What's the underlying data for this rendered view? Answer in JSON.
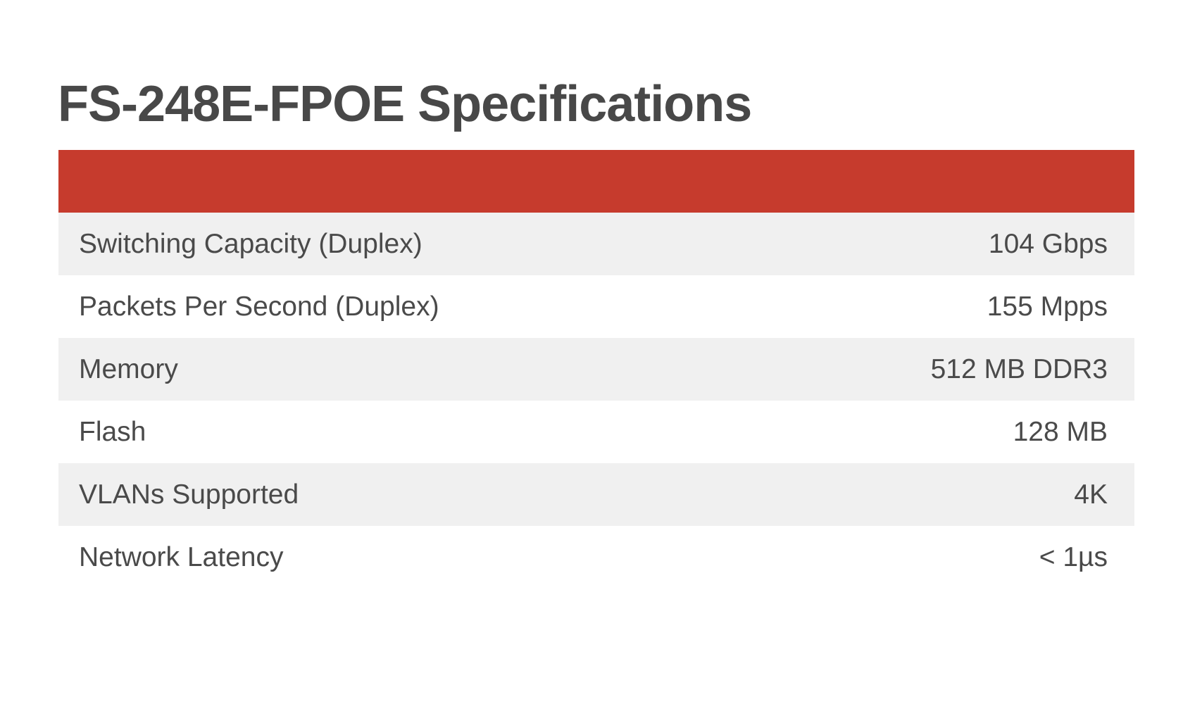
{
  "title": "FS-248E-FPOE Specifications",
  "colors": {
    "header_bar": "#c63b2d",
    "alt_row": "#f0f0f0",
    "text": "#4a4a4a"
  },
  "specs": [
    {
      "label": "Switching Capacity (Duplex)",
      "value": "104 Gbps"
    },
    {
      "label": "Packets Per Second (Duplex)",
      "value": "155 Mpps"
    },
    {
      "label": "Memory",
      "value": "512 MB DDR3"
    },
    {
      "label": "Flash",
      "value": "128 MB"
    },
    {
      "label": "VLANs Supported",
      "value": "4K"
    },
    {
      "label": "Network Latency",
      "value": "< 1µs"
    }
  ]
}
